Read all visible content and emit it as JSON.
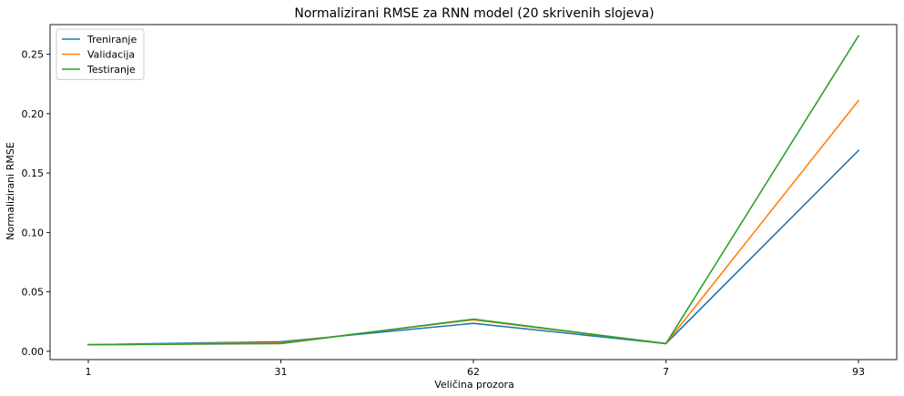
{
  "chart_data": {
    "type": "line",
    "title": "Normalizirani RMSE za RNN model (20 skrivenih slojeva)",
    "xlabel": "Veličina prozora",
    "ylabel": "Normalizirani RMSE",
    "categories": [
      "1",
      "31",
      "62",
      "7",
      "93"
    ],
    "ylim": [
      -0.007,
      0.275
    ],
    "yticks": [
      0.0,
      0.05,
      0.1,
      0.15,
      0.2,
      0.25
    ],
    "ytick_labels": [
      "0.00",
      "0.05",
      "0.10",
      "0.15",
      "0.20",
      "0.25"
    ],
    "series": [
      {
        "name": "Treniranje",
        "color": "#1f77b4",
        "values": [
          0.0055,
          0.008,
          0.0235,
          0.0065,
          0.169
        ]
      },
      {
        "name": "Validacija",
        "color": "#ff7f0e",
        "values": [
          0.0055,
          0.007,
          0.0265,
          0.0065,
          0.211
        ]
      },
      {
        "name": "Testiranje",
        "color": "#2ca02c",
        "values": [
          0.0055,
          0.0065,
          0.027,
          0.0065,
          0.2655
        ]
      }
    ],
    "grid": false,
    "legend_position": "top-left"
  }
}
